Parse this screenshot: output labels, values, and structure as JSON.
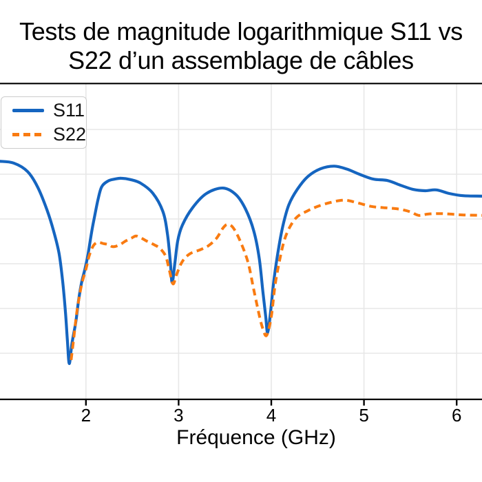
{
  "title": {
    "line1": "Tests de magnitude logarithmique S11 vs",
    "line2": "S22 d’un assemblage de câbles"
  },
  "chart_data": {
    "type": "line",
    "title": "Tests de magnitude logarithmique S11 vs S22 d’un assemblage de câbles",
    "xlabel": "Fréquence (GHz)",
    "ylabel": "",
    "x_ticks": [
      2,
      3,
      4,
      5,
      6
    ],
    "x_tick_labels": [
      "2",
      "3",
      "4",
      "5",
      "6"
    ],
    "x_range_visible": [
      1.07,
      6.28
    ],
    "ylim": [
      -70,
      0
    ],
    "y_gridlines_db": [
      -10,
      -20,
      -30,
      -40,
      -50,
      -60
    ],
    "y_tick_labels_visible": false,
    "grid": true,
    "grid_color": "#e7e7e7",
    "spine_color": "#000000",
    "legend": {
      "position": "upper-left",
      "entries": [
        {
          "label": "S11",
          "style": "solid"
        },
        {
          "label": "S22",
          "style": "dashed"
        }
      ]
    },
    "series": [
      {
        "name": "S11",
        "color": "#1565c0",
        "style": "solid",
        "points": [
          [
            1.07,
            -17.1
          ],
          [
            1.22,
            -17.5
          ],
          [
            1.37,
            -19.4
          ],
          [
            1.48,
            -22.9
          ],
          [
            1.58,
            -28.0
          ],
          [
            1.65,
            -32.6
          ],
          [
            1.71,
            -37.7
          ],
          [
            1.75,
            -44.2
          ],
          [
            1.78,
            -51.1
          ],
          [
            1.8,
            -57.2
          ],
          [
            1.82,
            -62.3
          ],
          [
            1.85,
            -57.7
          ],
          [
            1.89,
            -53.1
          ],
          [
            1.92,
            -48.3
          ],
          [
            1.95,
            -44.5
          ],
          [
            1.99,
            -41.1
          ],
          [
            2.02,
            -38.2
          ],
          [
            2.06,
            -33.1
          ],
          [
            2.09,
            -29.8
          ],
          [
            2.13,
            -25.7
          ],
          [
            2.17,
            -22.8
          ],
          [
            2.24,
            -21.5
          ],
          [
            2.31,
            -21.1
          ],
          [
            2.38,
            -20.9
          ],
          [
            2.48,
            -21.2
          ],
          [
            2.59,
            -22.0
          ],
          [
            2.72,
            -24.2
          ],
          [
            2.83,
            -28.3
          ],
          [
            2.88,
            -33.4
          ],
          [
            2.91,
            -39.5
          ],
          [
            2.93,
            -44.2
          ],
          [
            2.96,
            -39.8
          ],
          [
            2.99,
            -34.9
          ],
          [
            3.04,
            -31.4
          ],
          [
            3.15,
            -27.5
          ],
          [
            3.3,
            -24.3
          ],
          [
            3.48,
            -23.1
          ],
          [
            3.62,
            -24.6
          ],
          [
            3.72,
            -27.7
          ],
          [
            3.81,
            -32.6
          ],
          [
            3.87,
            -38.8
          ],
          [
            3.91,
            -46.4
          ],
          [
            3.94,
            -51.8
          ],
          [
            3.96,
            -55.4
          ],
          [
            3.99,
            -51.1
          ],
          [
            4.03,
            -43.4
          ],
          [
            4.08,
            -36.4
          ],
          [
            4.13,
            -31.1
          ],
          [
            4.19,
            -26.8
          ],
          [
            4.28,
            -23.4
          ],
          [
            4.39,
            -20.6
          ],
          [
            4.53,
            -18.8
          ],
          [
            4.68,
            -18.2
          ],
          [
            4.82,
            -18.9
          ],
          [
            4.95,
            -20.0
          ],
          [
            5.1,
            -21.1
          ],
          [
            5.25,
            -21.4
          ],
          [
            5.4,
            -22.5
          ],
          [
            5.53,
            -23.4
          ],
          [
            5.66,
            -23.7
          ],
          [
            5.78,
            -23.5
          ],
          [
            5.92,
            -24.3
          ],
          [
            6.07,
            -24.8
          ],
          [
            6.28,
            -24.9
          ]
        ]
      },
      {
        "name": "S22",
        "color": "#f97b11",
        "style": "dashed",
        "points": [
          [
            1.84,
            -61.5
          ],
          [
            1.87,
            -56.4
          ],
          [
            1.9,
            -51.1
          ],
          [
            1.93,
            -47.2
          ],
          [
            1.96,
            -44.1
          ],
          [
            2.0,
            -41.2
          ],
          [
            2.03,
            -38.6
          ],
          [
            2.06,
            -36.8
          ],
          [
            2.09,
            -35.7
          ],
          [
            2.13,
            -35.2
          ],
          [
            2.19,
            -35.5
          ],
          [
            2.24,
            -35.7
          ],
          [
            2.29,
            -36.2
          ],
          [
            2.36,
            -35.8
          ],
          [
            2.43,
            -34.9
          ],
          [
            2.49,
            -34.3
          ],
          [
            2.54,
            -33.8
          ],
          [
            2.6,
            -34.3
          ],
          [
            2.67,
            -35.1
          ],
          [
            2.74,
            -35.8
          ],
          [
            2.8,
            -36.6
          ],
          [
            2.86,
            -38.3
          ],
          [
            2.9,
            -41.4
          ],
          [
            2.94,
            -44.5
          ],
          [
            2.98,
            -42.3
          ],
          [
            3.04,
            -39.5
          ],
          [
            3.12,
            -37.8
          ],
          [
            3.23,
            -36.9
          ],
          [
            3.32,
            -36.0
          ],
          [
            3.41,
            -34.3
          ],
          [
            3.48,
            -32.0
          ],
          [
            3.53,
            -31.2
          ],
          [
            3.59,
            -32.0
          ],
          [
            3.67,
            -35.2
          ],
          [
            3.75,
            -39.8
          ],
          [
            3.81,
            -45.7
          ],
          [
            3.87,
            -51.5
          ],
          [
            3.91,
            -54.6
          ],
          [
            3.95,
            -56.0
          ],
          [
            4.0,
            -51.8
          ],
          [
            4.04,
            -44.9
          ],
          [
            4.09,
            -39.2
          ],
          [
            4.14,
            -34.8
          ],
          [
            4.2,
            -31.8
          ],
          [
            4.28,
            -29.5
          ],
          [
            4.39,
            -28.2
          ],
          [
            4.5,
            -27.2
          ],
          [
            4.64,
            -26.3
          ],
          [
            4.79,
            -25.8
          ],
          [
            4.93,
            -26.4
          ],
          [
            5.08,
            -27.2
          ],
          [
            5.23,
            -27.5
          ],
          [
            5.38,
            -27.8
          ],
          [
            5.5,
            -28.4
          ],
          [
            5.59,
            -29.2
          ],
          [
            5.69,
            -28.9
          ],
          [
            5.81,
            -28.8
          ],
          [
            5.93,
            -28.9
          ],
          [
            6.06,
            -29.1
          ],
          [
            6.28,
            -29.2
          ]
        ]
      }
    ]
  }
}
